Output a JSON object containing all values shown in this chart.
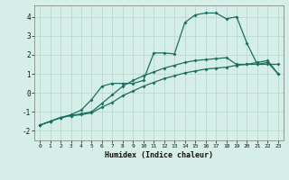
{
  "xlabel": "Humidex (Indice chaleur)",
  "background_color": "#d6eee8",
  "grid_color": "#b8d8d0",
  "line_color": "#1a7060",
  "xlim": [
    -0.5,
    23.5
  ],
  "ylim": [
    -2.5,
    4.6
  ],
  "xticks": [
    0,
    1,
    2,
    3,
    4,
    5,
    6,
    7,
    8,
    9,
    10,
    11,
    12,
    13,
    14,
    15,
    16,
    17,
    18,
    19,
    20,
    21,
    22,
    23
  ],
  "yticks": [
    -2,
    -1,
    0,
    1,
    2,
    3,
    4
  ],
  "series": [
    {
      "x": [
        0,
        1,
        2,
        3,
        4,
        5,
        6,
        7,
        8,
        9,
        10,
        11,
        12,
        13,
        14,
        15,
        16,
        17,
        18,
        19,
        20,
        21,
        22,
        23
      ],
      "y": [
        -1.7,
        -1.5,
        -1.3,
        -1.2,
        -1.15,
        -1.05,
        -0.75,
        -0.5,
        -0.15,
        0.1,
        0.35,
        0.55,
        0.75,
        0.9,
        1.05,
        1.15,
        1.25,
        1.3,
        1.35,
        1.45,
        1.5,
        1.6,
        1.7,
        1.0
      ]
    },
    {
      "x": [
        0,
        1,
        2,
        3,
        4,
        5,
        6,
        7,
        8,
        9,
        10,
        11,
        12,
        13,
        14,
        15,
        16,
        17,
        18,
        19,
        20,
        21,
        22,
        23
      ],
      "y": [
        -1.7,
        -1.5,
        -1.3,
        -1.2,
        -1.1,
        -1.0,
        -0.55,
        -0.1,
        0.35,
        0.65,
        0.9,
        1.1,
        1.3,
        1.45,
        1.6,
        1.7,
        1.75,
        1.8,
        1.85,
        1.5,
        1.5,
        1.5,
        1.6,
        1.0
      ]
    },
    {
      "x": [
        0,
        1,
        2,
        3,
        4,
        5,
        6,
        7,
        8,
        9,
        10,
        11,
        12,
        13,
        14,
        15,
        16,
        17,
        18,
        19,
        20,
        21,
        22,
        23
      ],
      "y": [
        -1.7,
        -1.5,
        -1.3,
        -1.15,
        -0.9,
        -0.35,
        0.35,
        0.5,
        0.5,
        0.5,
        0.65,
        2.1,
        2.1,
        2.05,
        3.7,
        4.1,
        4.2,
        4.2,
        3.9,
        4.0,
        2.6,
        1.5,
        1.5,
        1.5
      ]
    }
  ]
}
